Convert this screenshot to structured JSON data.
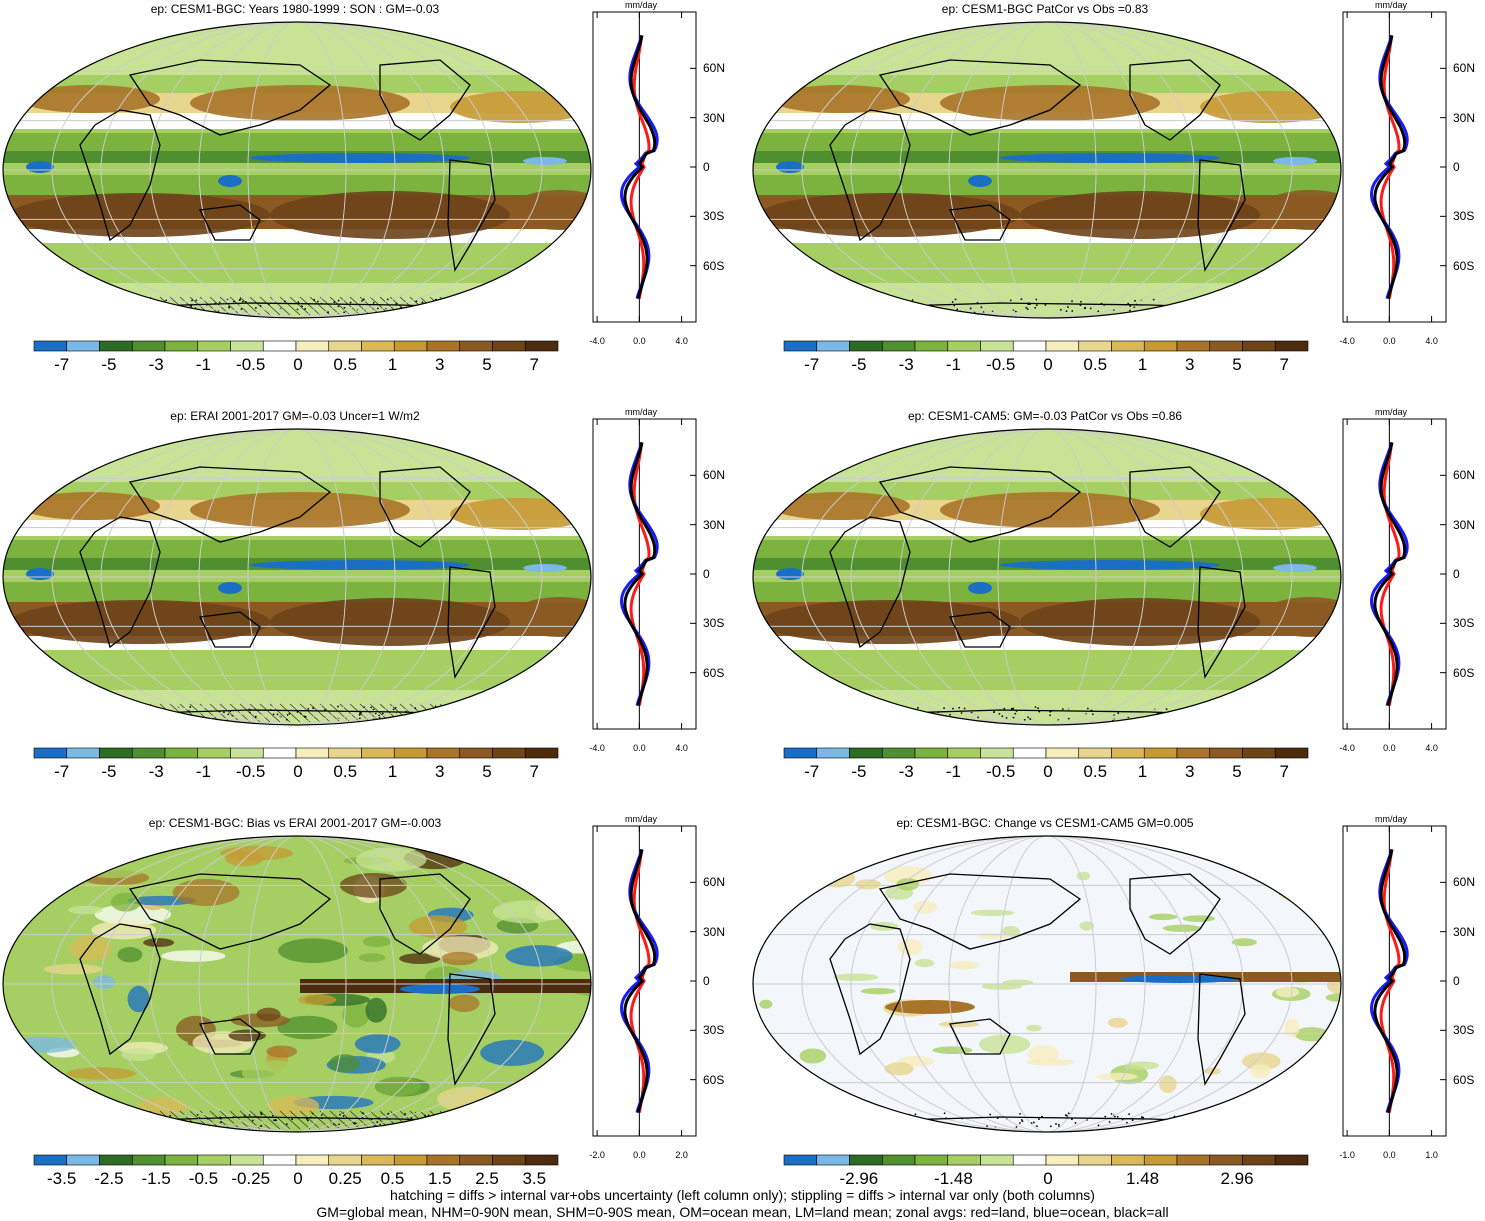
{
  "panels": [
    {
      "id": "p1",
      "title": "ep: CESM1-BGC: Years 1980-1999 : SON : GM=-0.03",
      "colorbar": [
        "-7",
        "-5",
        "-3",
        "-1",
        "-0.5",
        "0",
        "0.5",
        "1",
        "3",
        "5",
        "7"
      ],
      "zonal_ticks": [
        "-4.0",
        "0.0",
        "4.0"
      ],
      "hatching": true,
      "style": "full"
    },
    {
      "id": "p2",
      "title": "ep: CESM1-BGC PatCor vs Obs =0.83",
      "colorbar": [
        "-7",
        "-5",
        "-3",
        "-1",
        "-0.5",
        "0",
        "0.5",
        "1",
        "3",
        "5",
        "7"
      ],
      "zonal_ticks": [
        "-4.0",
        "0.0",
        "4.0"
      ],
      "hatching": false,
      "style": "full"
    },
    {
      "id": "p3",
      "title": "ep: ERAI 2001-2017 GM=-0.03 Uncer=1 W/m2",
      "colorbar": [
        "-7",
        "-5",
        "-3",
        "-1",
        "-0.5",
        "0",
        "0.5",
        "1",
        "3",
        "5",
        "7"
      ],
      "zonal_ticks": [
        "-4.0",
        "0.0",
        "4.0"
      ],
      "hatching": true,
      "style": "full"
    },
    {
      "id": "p4",
      "title": "ep: CESM1-CAM5: GM=-0.03 PatCor vs Obs =0.86",
      "colorbar": [
        "-7",
        "-5",
        "-3",
        "-1",
        "-0.5",
        "0",
        "0.5",
        "1",
        "3",
        "5",
        "7"
      ],
      "zonal_ticks": [
        "-4.0",
        "0.0",
        "4.0"
      ],
      "hatching": false,
      "style": "full"
    },
    {
      "id": "p5",
      "title": "ep: CESM1-BGC: Bias vs ERAI 2001-2017  GM=-0.003",
      "colorbar": [
        "-3.5",
        "-2.5",
        "-1.5",
        "-0.5",
        "-0.25",
        "0",
        "0.25",
        "0.5",
        "1.5",
        "2.5",
        "3.5"
      ],
      "zonal_ticks": [
        "-2.0",
        "0.0",
        "2.0"
      ],
      "hatching": true,
      "style": "bias"
    },
    {
      "id": "p6",
      "title": "ep: CESM1-BGC: Change vs CESM1-CAM5 GM=0.005",
      "colorbar": [
        "",
        "-2.96",
        "",
        "-1.48",
        "",
        "0",
        "",
        "1.48",
        "",
        "2.96",
        ""
      ],
      "zonal_ticks": [
        "-1.0",
        "0.0",
        "1.0"
      ],
      "hatching": false,
      "style": "change"
    }
  ],
  "zonal_unit": "mm/day",
  "lat_labels": [
    "60N",
    "30N",
    "0",
    "30S",
    "60S"
  ],
  "colors": {
    "palette": [
      "#1a6fc4",
      "#7ab8e8",
      "#2e6b24",
      "#4f8f2f",
      "#7cb33f",
      "#a5cf62",
      "#c8e396",
      "#ffffff",
      "#f6eebd",
      "#e8d68e",
      "#d9b957",
      "#c59a34",
      "#a87428",
      "#8a5a22",
      "#6d4318",
      "#4d2c0e"
    ],
    "land_line": "#000000",
    "zonal_land": "#ff1a1a",
    "zonal_ocean": "#1a1aff",
    "zonal_all": "#000000"
  },
  "footer": [
    "hatching = diffs > internal var+obs uncertainty (left column only); stippling = diffs > internal var only (both columns)",
    "GM=global mean, NHM=0-90N mean, SHM=0-90S mean, OM=ocean mean, LM=land mean; zonal avgs: red=land, blue=ocean, black=all"
  ]
}
